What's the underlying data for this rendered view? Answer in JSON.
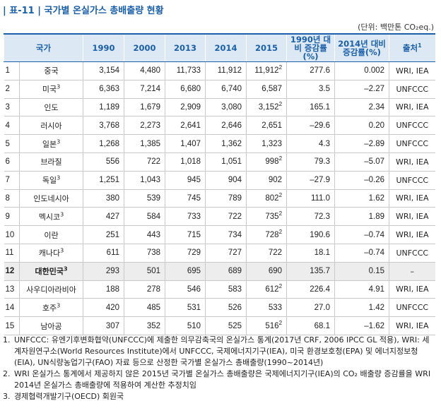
{
  "header": {
    "label": "표-11",
    "title": "국가별 온실가스 총배출량 현황",
    "unit": "(단위: 백만톤 CO₂eq.)"
  },
  "table": {
    "columns": [
      "국가",
      "1990",
      "2000",
      "2013",
      "2014",
      "2015",
      "1990년 대비 증감률(%)",
      "2014년 대비 증감률(%)",
      "출처"
    ],
    "source_note": "1",
    "rows": [
      {
        "no": "1",
        "country": "중국",
        "v": [
          "3,154",
          "4,480",
          "11,733",
          "11,912",
          "11,912"
        ],
        "v_note": "2",
        "r1990": "277.6",
        "r2014": "0.002",
        "source": "WRI, IEA"
      },
      {
        "no": "2",
        "country": "미국",
        "country_note": "3",
        "v": [
          "6,363",
          "7,214",
          "6,680",
          "6,740",
          "6,587"
        ],
        "r1990": "3.5",
        "r2014": "–2.27",
        "source": "UNFCCC"
      },
      {
        "no": "3",
        "country": "인도",
        "v": [
          "1,189",
          "1,679",
          "2,909",
          "3,080",
          "3,152"
        ],
        "v_note": "2",
        "r1990": "165.1",
        "r2014": "2.34",
        "source": "WRI, IEA"
      },
      {
        "no": "4",
        "country": "러시아",
        "v": [
          "3,768",
          "2,273",
          "2,641",
          "2,646",
          "2,651"
        ],
        "r1990": "–29.6",
        "r2014": "0.20",
        "source": "UNFCCC"
      },
      {
        "no": "5",
        "country": "일본",
        "country_note": "3",
        "v": [
          "1,268",
          "1,385",
          "1,407",
          "1,362",
          "1,323"
        ],
        "r1990": "4.3",
        "r2014": "–2.89",
        "source": "UNFCCC"
      },
      {
        "no": "6",
        "country": "브라질",
        "v": [
          "556",
          "722",
          "1,018",
          "1,051",
          "998"
        ],
        "v_note": "2",
        "r1990": "79.3",
        "r2014": "–5.07",
        "source": "WRI, IEA"
      },
      {
        "no": "7",
        "country": "독일",
        "country_note": "3",
        "v": [
          "1,251",
          "1,043",
          "945",
          "904",
          "902"
        ],
        "r1990": "–27.9",
        "r2014": "–0.26",
        "source": "UNFCCC"
      },
      {
        "no": "8",
        "country": "인도네시아",
        "v": [
          "380",
          "539",
          "745",
          "789",
          "802"
        ],
        "v_note": "2",
        "r1990": "111.0",
        "r2014": "1.62",
        "source": "WRI, IEA"
      },
      {
        "no": "9",
        "country": "멕시코",
        "country_note": "3",
        "v": [
          "427",
          "584",
          "733",
          "722",
          "735"
        ],
        "v_note": "2",
        "r1990": "72.3",
        "r2014": "1.89",
        "source": "WRI, IEA"
      },
      {
        "no": "10",
        "country": "이란",
        "v": [
          "251",
          "443",
          "715",
          "734",
          "728"
        ],
        "v_note": "2",
        "r1990": "190.6",
        "r2014": "–0.74",
        "source": "WRI, IEA"
      },
      {
        "no": "11",
        "country": "캐나다",
        "country_note": "3",
        "v": [
          "611",
          "738",
          "729",
          "727",
          "722"
        ],
        "r1990": "18.1",
        "r2014": "–0.74",
        "source": "UNFCCC"
      },
      {
        "no": "12",
        "country": "대한민국",
        "country_note": "3",
        "highlight": true,
        "v": [
          "293",
          "501",
          "695",
          "689",
          "690"
        ],
        "r1990": "135.7",
        "r2014": "0.15",
        "source": "–"
      },
      {
        "no": "13",
        "country": "사우디아라비아",
        "v": [
          "188",
          "278",
          "546",
          "583",
          "612"
        ],
        "v_note": "2",
        "r1990": "226.4",
        "r2014": "4.91",
        "source": "WRI, IEA"
      },
      {
        "no": "14",
        "country": "호주",
        "country_note": "3",
        "v": [
          "420",
          "485",
          "531",
          "526",
          "533"
        ],
        "r1990": "27.0",
        "r2014": "1.42",
        "source": "UNFCCC"
      },
      {
        "no": "15",
        "country": "남아공",
        "v": [
          "307",
          "352",
          "510",
          "525",
          "516"
        ],
        "v_note": "2",
        "r1990": "68.1",
        "r2014": "–1.62",
        "source": "WRI, IEA"
      }
    ]
  },
  "footnotes": [
    {
      "no": "1.",
      "text": "UNFCCC: 유엔기후변화협약(UNFCCC)에 제출한 의무감축국의 온실가스 통계(2017년 CRF, 2006 IPCC GL 적용), WRI: 세계자원연구소(World Resources Institute)에서 UNFCCC, 국제에너지기구(IEA), 미국 환경보호청(EPA) 및 에너지정보청(EIA), UN식량농업기구(FAO) 자료 등으로 산정한 국가별 온실가스 총배출량(1990~2014년)"
    },
    {
      "no": "2.",
      "text": "WRI 온실가스 통계에서 제공하지 않은 2015년 국가별 온실가스 총배출량은 국제에너지기구(IEA)의 CO₂ 배출량 증감률을 WRI 2014년 온실가스 총배출량에 적용하여 계산한 추정치임"
    },
    {
      "no": "3.",
      "text": "경제협력개발기구(OECD) 회원국"
    }
  ]
}
